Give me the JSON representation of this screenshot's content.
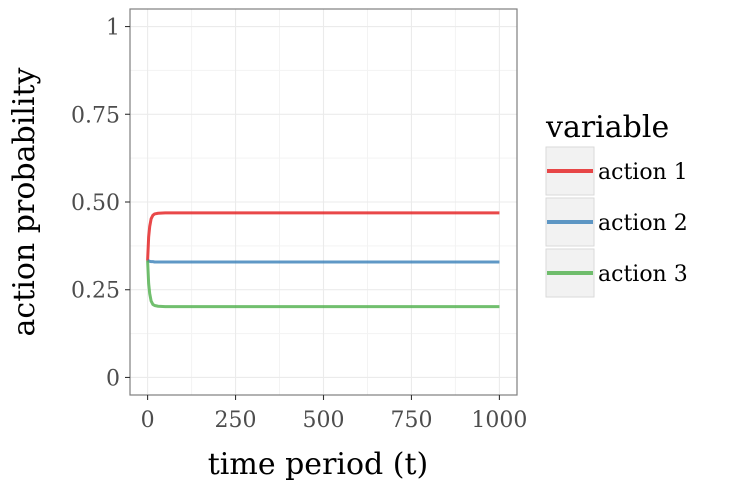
{
  "chart_data": {
    "type": "line",
    "xlabel": "time period (t)",
    "ylabel": "action probability",
    "xlim": [
      -50,
      1050
    ],
    "ylim": [
      -0.05,
      1.05
    ],
    "x_ticks": [
      {
        "value": 0,
        "label": "0"
      },
      {
        "value": 250,
        "label": "250"
      },
      {
        "value": 500,
        "label": "500"
      },
      {
        "value": 750,
        "label": "750"
      },
      {
        "value": 1000,
        "label": "1000"
      }
    ],
    "y_ticks": [
      {
        "value": 0,
        "label": "0"
      },
      {
        "value": 0.25,
        "label": "0.25"
      },
      {
        "value": 0.5,
        "label": "0.50"
      },
      {
        "value": 0.75,
        "label": "0.75"
      },
      {
        "value": 1,
        "label": "1"
      }
    ],
    "grid": true,
    "legend": {
      "title": "variable",
      "position": "right"
    },
    "series": [
      {
        "name": "action 1",
        "color": "#e41a1c",
        "x": [
          0,
          3,
          6,
          10,
          15,
          20,
          30,
          50,
          100,
          200,
          400,
          600,
          800,
          1000
        ],
        "y": [
          0.333,
          0.4,
          0.43,
          0.452,
          0.462,
          0.466,
          0.468,
          0.469,
          0.469,
          0.469,
          0.469,
          0.469,
          0.469,
          0.469
        ]
      },
      {
        "name": "action 2",
        "color": "#377eb8",
        "x": [
          0,
          3,
          6,
          10,
          15,
          20,
          30,
          50,
          100,
          200,
          400,
          600,
          800,
          1000
        ],
        "y": [
          0.333,
          0.332,
          0.331,
          0.33,
          0.33,
          0.329,
          0.329,
          0.329,
          0.329,
          0.329,
          0.329,
          0.329,
          0.329,
          0.329
        ]
      },
      {
        "name": "action 3",
        "color": "#4daf4a",
        "x": [
          0,
          3,
          6,
          10,
          15,
          20,
          30,
          50,
          100,
          200,
          400,
          600,
          800,
          1000
        ],
        "y": [
          0.333,
          0.268,
          0.239,
          0.218,
          0.208,
          0.205,
          0.203,
          0.202,
          0.202,
          0.202,
          0.202,
          0.202,
          0.202,
          0.202
        ]
      }
    ]
  }
}
